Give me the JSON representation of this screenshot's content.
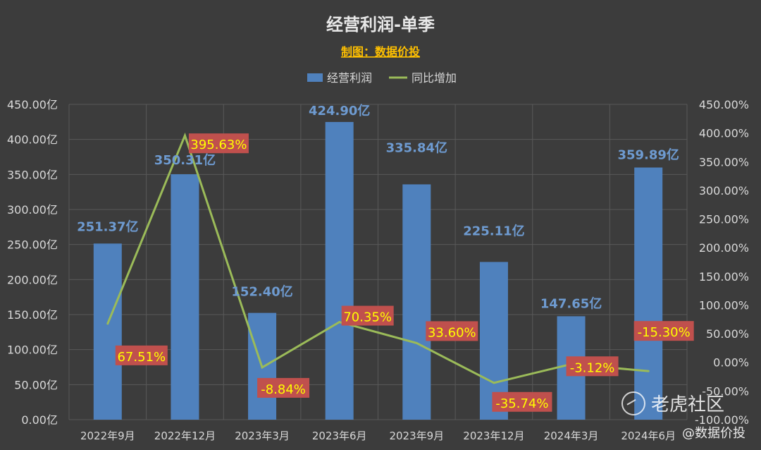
{
  "chart_data": {
    "type": "bar+line",
    "title": "经营利润-单季",
    "subtitle": "制图：数据价投",
    "categories": [
      "2022年9月",
      "2022年12月",
      "2023年3月",
      "2023年6月",
      "2023年9月",
      "2023年12月",
      "2024年3月",
      "2024年6月"
    ],
    "series": [
      {
        "name": "经营利润",
        "type": "bar",
        "axis": "left",
        "color": "#4f81bd",
        "values": [
          251.37,
          350.31,
          152.4,
          424.9,
          335.84,
          225.11,
          147.65,
          359.89
        ],
        "labels": [
          "251.37亿",
          "350.31亿",
          "152.40亿",
          "424.90亿",
          "335.84亿",
          "225.11亿",
          "147.65亿",
          "359.89亿"
        ]
      },
      {
        "name": "同比增加",
        "type": "line",
        "axis": "right",
        "color": "#9bbb59",
        "values": [
          67.51,
          395.63,
          -8.84,
          70.35,
          33.6,
          -35.74,
          -3.12,
          -15.3
        ],
        "labels": [
          "67.51%",
          "395.63%",
          "-8.84%",
          "70.35%",
          "33.60%",
          "-35.74%",
          "-3.12%",
          "-15.30%"
        ]
      }
    ],
    "y_left": {
      "min": 0,
      "max": 450,
      "step": 50,
      "ticks": [
        "0.00亿",
        "50.00亿",
        "100.00亿",
        "150.00亿",
        "200.00亿",
        "250.00亿",
        "300.00亿",
        "350.00亿",
        "400.00亿",
        "450.00亿"
      ]
    },
    "y_right": {
      "min": -100,
      "max": 450,
      "step": 50,
      "ticks": [
        "-100.00%",
        "-50.00%",
        "0.00%",
        "50.00%",
        "100.00%",
        "150.00%",
        "200.00%",
        "250.00%",
        "300.00%",
        "350.00%",
        "400.00%",
        "450.00%"
      ]
    },
    "grid": true,
    "legend_position": "top"
  },
  "watermark": {
    "brand": "老虎社区",
    "handle": "@数据价投"
  },
  "colors": {
    "background": "#3c3c3c",
    "title": "#e8e8e8",
    "subtitle": "#ffc000",
    "axis_text": "#d9d9d9",
    "grid": "#595959",
    "bar_label": "#6e9bd1",
    "pct_label_bg": "#c0504d",
    "pct_label_text": "#ffff00"
  }
}
